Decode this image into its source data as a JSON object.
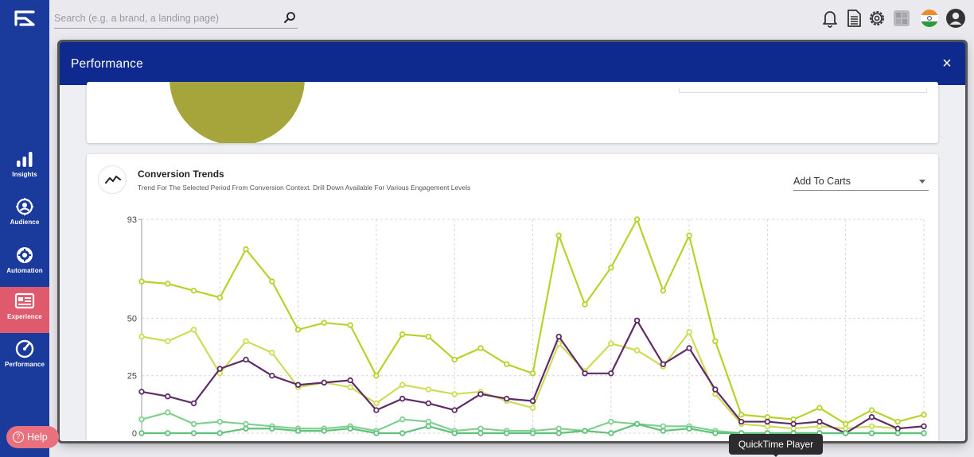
{
  "nav": {
    "items": [
      {
        "label": "Insights",
        "icon": "bar-chart-icon"
      },
      {
        "label": "Audience",
        "icon": "audience-icon"
      },
      {
        "label": "Automation",
        "icon": "gear-icon"
      },
      {
        "label": "Experience",
        "icon": "experience-icon",
        "active": true
      },
      {
        "label": "Performance",
        "icon": "gauge-icon"
      }
    ]
  },
  "search": {
    "placeholder": "Search (e.g. a brand, a landing page)",
    "value": ""
  },
  "modal": {
    "title": "Performance",
    "close_symbol": "×"
  },
  "chart_card": {
    "title": "Conversion Trends",
    "subtitle": "Trend For The Selected Period From Conversion Context. Drill Down Available For Various Engagement Levels",
    "selector_value": "Add To Carts"
  },
  "help": {
    "label": "Help",
    "symbol": "?"
  },
  "tooltip": {
    "text": "QuickTime Player"
  },
  "colors": {
    "nav_bg": "#1a3a9c",
    "nav_active": "#e05a6e",
    "modal_header": "#0f2a8e",
    "series_1": "#b5d32a",
    "series_2": "#cddc55",
    "series_3": "#5e2a68",
    "series_4": "#7fcf8e",
    "series_5": "#5fc27a"
  },
  "chart_data": {
    "type": "line",
    "title": "Conversion Trends",
    "ylim": [
      0,
      93
    ],
    "yticks": [
      0,
      25,
      50,
      93
    ],
    "grid": true,
    "x_count": 31,
    "series": [
      {
        "color": "#b5d32a",
        "values": [
          66,
          65,
          62,
          59,
          80,
          66,
          45,
          48,
          47,
          25,
          43,
          42,
          32,
          37,
          30,
          26,
          86,
          56,
          72,
          93,
          62,
          86,
          40,
          8,
          7,
          6,
          11,
          4,
          10,
          5,
          8
        ]
      },
      {
        "color": "#cddc55",
        "values": [
          42,
          40,
          45,
          26,
          40,
          35,
          20,
          22,
          20,
          13,
          21,
          19,
          17,
          18,
          14,
          11,
          39,
          27,
          39,
          36,
          29,
          44,
          17,
          4,
          3,
          2,
          3,
          2,
          3,
          2,
          3
        ]
      },
      {
        "color": "#5e2a68",
        "values": [
          18,
          16,
          13,
          28,
          32,
          25,
          21,
          22,
          23,
          10,
          15,
          13,
          10,
          17,
          15,
          14,
          42,
          26,
          26,
          49,
          30,
          37,
          19,
          5,
          5,
          4,
          5,
          0,
          7,
          2,
          3
        ]
      },
      {
        "color": "#7fcf8e",
        "values": [
          6,
          9,
          4,
          5,
          4,
          3,
          2,
          2,
          3,
          1,
          6,
          5,
          1,
          2,
          1,
          1,
          2,
          1,
          5,
          4,
          3,
          3,
          1,
          0,
          0,
          0,
          0,
          0,
          0,
          0,
          0
        ]
      },
      {
        "color": "#5fc27a",
        "values": [
          0,
          0,
          0,
          0,
          2,
          2,
          1,
          1,
          2,
          0,
          0,
          3,
          0,
          0,
          0,
          0,
          0,
          1,
          0,
          4,
          1,
          2,
          0,
          0,
          0,
          0,
          0,
          0,
          0,
          0,
          0
        ]
      }
    ]
  }
}
